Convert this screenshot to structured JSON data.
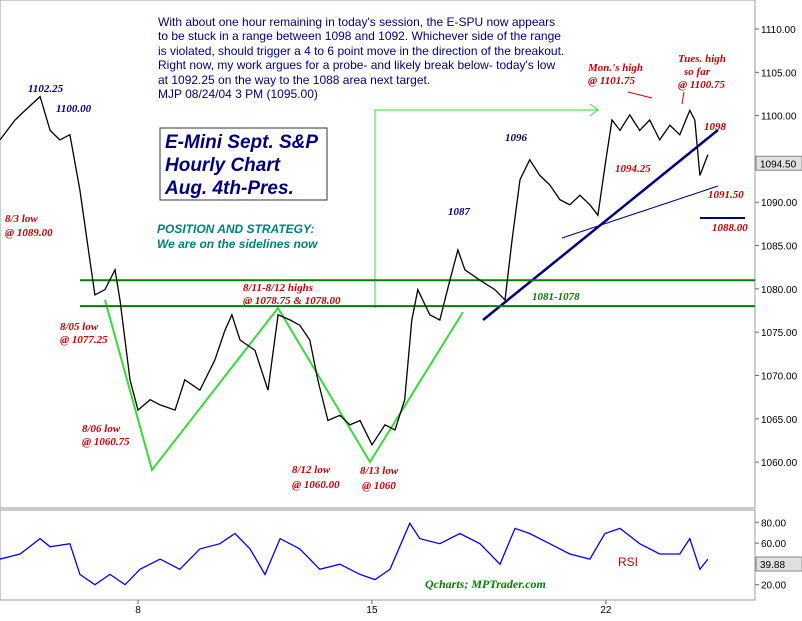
{
  "notes": [
    "With about one hour remaining in today's session, the E-SPU now appears",
    "to be stuck in a range between 1098 and 1092. Whichever side of the range",
    "is violated, should trigger a 4 to 6 point move in the direction of the breakout.",
    "Right now, my work argues for a probe- and likely break below- today's low",
    "at 1092.25 on the way to the 1088 area next target.",
    "MJP 08/24/04 3 PM (1095.00)"
  ],
  "title_box": [
    "E-Mini Sept. S&P",
    "Hourly Chart",
    "Aug. 4th-Pres."
  ],
  "strategy": [
    "POSITION AND STRATEGY:",
    "We are  on the sidelines now"
  ],
  "chart_data": [
    {
      "type": "line",
      "x": [
        3.87,
        4.32,
        4.62,
        5.07,
        5.37,
        5.66,
        5.96,
        6.26,
        6.56,
        6.71,
        7.01,
        7.31,
        7.46,
        7.76,
        8.0,
        8.36,
        8.66,
        9.11,
        9.4,
        9.85,
        10.3,
        10.6,
        10.81,
        11.05,
        11.5,
        11.89,
        12.19,
        12.55,
        12.84,
        13.14,
        13.38,
        13.68,
        14.04,
        14.34,
        14.64,
        15.0,
        15.39,
        15.69,
        15.98,
        16.19,
        16.37,
        16.73,
        17.03,
        17.33,
        17.57,
        17.78,
        18.23,
        18.68,
        18.98,
        19.19,
        19.43,
        19.72,
        20.02,
        20.32,
        20.62,
        20.92,
        21.22,
        21.52,
        21.76,
        22.0,
        22.18,
        22.42,
        22.71,
        23.01,
        23.31,
        23.61,
        23.91,
        24.21,
        24.51,
        24.66,
        24.81,
        25.05
      ],
      "series": [
        {
          "color": "#000000",
          "values": [
            1097.2,
            1099.5,
            1100.6,
            1102.2,
            1098.3,
            1097.2,
            1097.8,
            1091.4,
            1083.3,
            1079.3,
            1079.9,
            1082.2,
            1078.7,
            1069.5,
            1066.0,
            1067.2,
            1066.6,
            1066.0,
            1069.5,
            1068.3,
            1071.8,
            1075.2,
            1077.0,
            1074.1,
            1072.9,
            1068.3,
            1077.0,
            1076.4,
            1075.8,
            1074.1,
            1069.5,
            1064.8,
            1065.4,
            1064.3,
            1064.8,
            1062.0,
            1064.3,
            1063.7,
            1067.2,
            1076.4,
            1079.9,
            1077.0,
            1076.4,
            1081.0,
            1084.5,
            1082.2,
            1081.0,
            1079.9,
            1078.7,
            1085.6,
            1092.6,
            1094.9,
            1093.1,
            1092.0,
            1090.3,
            1089.7,
            1090.8,
            1089.7,
            1088.5,
            1094.9,
            1099.5,
            1098.3,
            1100.1,
            1098.3,
            1099.5,
            1097.2,
            1098.9,
            1097.8,
            1100.6,
            1099.5,
            1093.1,
            1095.5
          ]
        }
      ],
      "xlim": [
        3.87,
        26.46
      ],
      "ylim": [
        1054.7,
        1113.35
      ],
      "yticks": [
        {
          "value": 1060,
          "label": "1060.00"
        },
        {
          "value": 1065,
          "label": "1065.00"
        },
        {
          "value": 1070,
          "label": "1070.00"
        },
        {
          "value": 1075,
          "label": "1075.00"
        },
        {
          "value": 1080,
          "label": "1080.00"
        },
        {
          "value": 1085,
          "label": "1085.00"
        },
        {
          "value": 1090,
          "label": "1090.00"
        },
        {
          "value": 1095,
          "label": "1095.00"
        },
        {
          "value": 1100,
          "label": "1100.00"
        },
        {
          "value": 1105,
          "label": "1105.00"
        },
        {
          "value": 1110,
          "label": "1110.00"
        }
      ],
      "last_value": {
        "value": 1094.5,
        "label": "1094.50"
      },
      "levels": [
        1081,
        1078
      ],
      "level_color": "#008000",
      "annotations": [
        "1102.25",
        "1100.00",
        "8/3 low",
        "@ 1089.00",
        "8/05 low",
        "@ 1077.25",
        "8/06 low",
        "@ 1060.75",
        "8/11-8/12 highs",
        "@ 1078.75 & 1078.00",
        "8/12 low",
        "@ 1060.00",
        "8/13 low",
        "@ 1060",
        "1087",
        "1096",
        "1081-1078",
        "Mon.'s high",
        "@ 1101.75",
        "Tues. high",
        "so far",
        "@ 1100.75",
        "1094.25",
        "1098",
        "1091.50",
        "1088.00"
      ]
    },
    {
      "type": "line",
      "x": [
        3.87,
        4.47,
        5.07,
        5.37,
        5.96,
        6.26,
        6.71,
        7.16,
        7.61,
        8.06,
        8.66,
        9.25,
        9.85,
        10.45,
        10.9,
        11.35,
        11.8,
        12.25,
        12.84,
        13.44,
        14.04,
        14.64,
        15.09,
        15.54,
        16.13,
        16.43,
        17.03,
        17.63,
        18.23,
        18.83,
        19.28,
        19.72,
        20.32,
        20.92,
        21.52,
        21.97,
        22.42,
        23.01,
        23.61,
        24.21,
        24.51,
        24.81,
        25.05
      ],
      "series": [
        {
          "color": "#0000ff",
          "values": [
            44.6,
            49.5,
            64.3,
            56.4,
            59.4,
            29.9,
            20.0,
            29.9,
            20.0,
            34.8,
            44.6,
            34.8,
            54.4,
            59.4,
            69.2,
            54.4,
            29.9,
            64.3,
            54.4,
            34.8,
            39.7,
            29.9,
            24.9,
            34.8,
            79.0,
            64.3,
            59.4,
            69.2,
            59.4,
            39.7,
            74.1,
            69.2,
            59.4,
            49.5,
            44.6,
            69.2,
            74.1,
            59.4,
            49.5,
            49.5,
            64.3,
            34.8,
            44.6
          ]
        }
      ],
      "xlim": [
        3.87,
        26.46
      ],
      "ylim": [
        5.3,
        91.8
      ],
      "xticks": [
        8,
        15,
        22
      ],
      "yticks": [
        {
          "value": 20,
          "label": "20.00"
        },
        {
          "value": 40,
          "label": "40.00"
        },
        {
          "value": 60,
          "label": "60.00"
        },
        {
          "value": 80,
          "label": "80.00"
        }
      ],
      "last_value": {
        "value": 39.88,
        "label": "39.88"
      },
      "label": "RSI",
      "source": "Qcharts; MPTrader.com"
    }
  ]
}
